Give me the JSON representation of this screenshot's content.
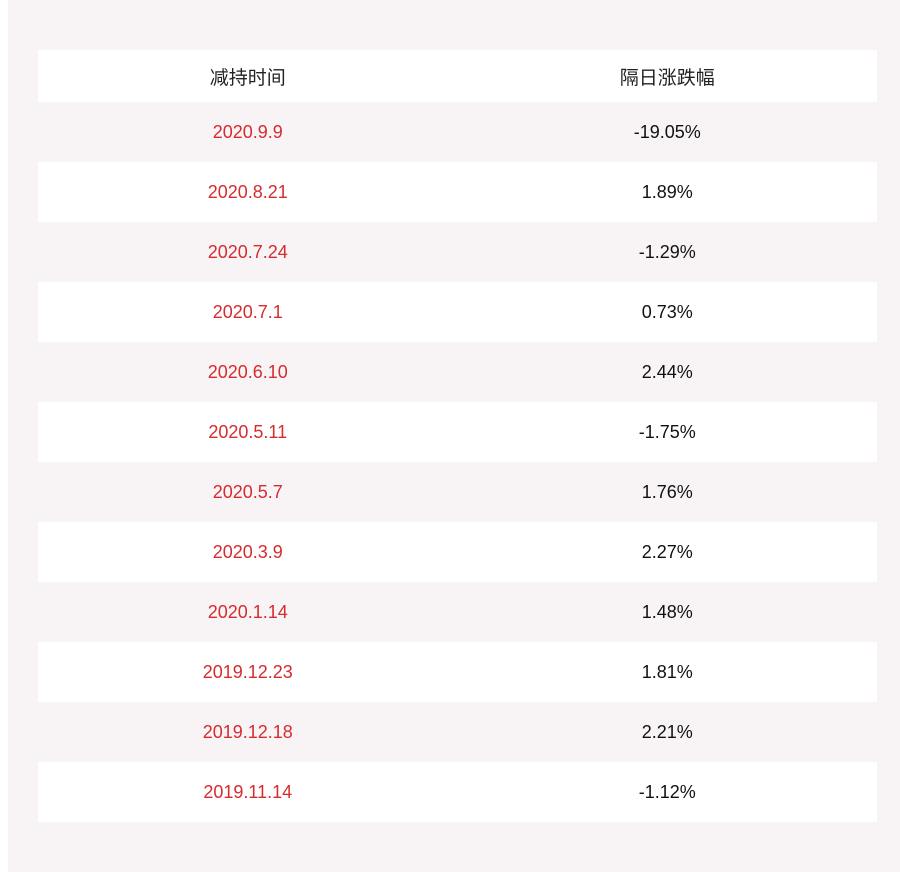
{
  "colors": {
    "date_red": "#d62b2f",
    "panel_bg": "#f8f4f5"
  },
  "table": {
    "headers": [
      "减持时间",
      "隔日涨跌幅"
    ],
    "rows": [
      {
        "date": "2020.9.9",
        "change": "-19.05%"
      },
      {
        "date": "2020.8.21",
        "change": "1.89%"
      },
      {
        "date": "2020.7.24",
        "change": "-1.29%"
      },
      {
        "date": "2020.7.1",
        "change": "0.73%"
      },
      {
        "date": "2020.6.10",
        "change": "2.44%"
      },
      {
        "date": "2020.5.11",
        "change": "-1.75%"
      },
      {
        "date": "2020.5.7",
        "change": "1.76%"
      },
      {
        "date": "2020.3.9",
        "change": "2.27%"
      },
      {
        "date": "2020.1.14",
        "change": "1.48%"
      },
      {
        "date": "2019.12.23",
        "change": "1.81%"
      },
      {
        "date": "2019.12.18",
        "change": "2.21%"
      },
      {
        "date": "2019.11.14",
        "change": "-1.12%"
      }
    ]
  }
}
